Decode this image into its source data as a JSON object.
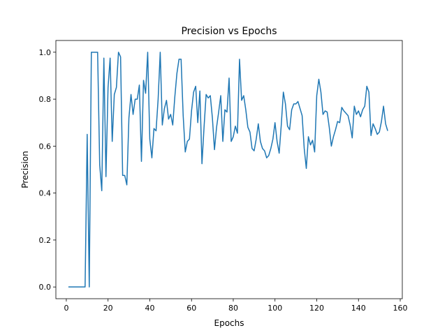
{
  "chart_data": {
    "type": "line",
    "title": "Precision vs Epochs",
    "xlabel": "Epochs",
    "ylabel": "Precision",
    "xlim": [
      -5,
      161
    ],
    "ylim": [
      -0.05,
      1.05
    ],
    "x_ticks": [
      0,
      20,
      40,
      60,
      80,
      100,
      120,
      140,
      160
    ],
    "y_ticks": [
      0.0,
      0.2,
      0.4,
      0.6,
      0.8,
      1.0
    ],
    "x_tick_labels": [
      "0",
      "20",
      "40",
      "60",
      "80",
      "100",
      "120",
      "140",
      "160"
    ],
    "y_tick_labels": [
      "0.0",
      "0.2",
      "0.4",
      "0.6",
      "0.8",
      "1.0"
    ],
    "grid": false,
    "line_color": "#1f77b4",
    "series": [
      {
        "x": [
          1,
          2,
          3,
          4,
          5,
          6,
          7,
          8,
          9,
          10,
          11,
          12,
          13,
          14,
          15,
          16,
          17,
          18,
          19,
          20,
          21,
          22,
          23,
          24,
          25,
          26,
          27,
          28,
          29,
          30,
          31,
          32,
          33,
          34,
          35,
          36,
          37,
          38,
          39,
          40,
          41,
          42,
          43,
          44,
          45,
          46,
          47,
          48,
          49,
          50,
          51,
          52,
          53,
          54,
          55,
          56,
          57,
          58,
          59,
          60,
          61,
          62,
          63,
          64,
          65,
          66,
          67,
          68,
          69,
          70,
          71,
          72,
          73,
          74,
          75,
          76,
          77,
          78,
          79,
          80,
          81,
          82,
          83,
          84,
          85,
          86,
          87,
          88,
          89,
          90,
          91,
          92,
          93,
          94,
          95,
          96,
          97,
          98,
          99,
          100,
          101,
          102,
          103,
          104,
          105,
          106,
          107,
          108,
          109,
          110,
          111,
          112,
          113,
          114,
          115,
          116,
          117,
          118,
          119,
          120,
          121,
          122,
          123,
          124,
          125,
          126,
          127,
          128,
          129,
          130,
          131,
          132,
          133,
          134,
          135,
          136,
          137,
          138,
          139,
          140,
          141,
          142,
          143,
          144,
          145,
          146,
          147,
          148,
          149,
          150,
          151,
          152,
          153,
          154
        ],
        "y": [
          0.0,
          0.0,
          0.0,
          0.0,
          0.0,
          0.0,
          0.0,
          0.0,
          0.0,
          0.65,
          0.0,
          1.0,
          1.0,
          1.0,
          1.0,
          0.52,
          0.41,
          0.975,
          0.47,
          0.85,
          0.975,
          0.62,
          0.82,
          0.85,
          1.0,
          0.98,
          0.475,
          0.475,
          0.435,
          0.72,
          0.82,
          0.735,
          0.8,
          0.8,
          0.86,
          0.535,
          0.88,
          0.825,
          1.0,
          0.63,
          0.55,
          0.675,
          0.665,
          0.8,
          1.0,
          0.69,
          0.76,
          0.795,
          0.715,
          0.735,
          0.69,
          0.81,
          0.91,
          0.97,
          0.97,
          0.73,
          0.575,
          0.62,
          0.63,
          0.75,
          0.83,
          0.855,
          0.7,
          0.835,
          0.525,
          0.68,
          0.82,
          0.805,
          0.815,
          0.72,
          0.585,
          0.68,
          0.745,
          0.815,
          0.62,
          0.755,
          0.745,
          0.89,
          0.62,
          0.64,
          0.685,
          0.655,
          0.97,
          0.795,
          0.815,
          0.755,
          0.68,
          0.66,
          0.59,
          0.58,
          0.63,
          0.695,
          0.62,
          0.59,
          0.58,
          0.55,
          0.56,
          0.59,
          0.63,
          0.7,
          0.62,
          0.57,
          0.69,
          0.83,
          0.78,
          0.685,
          0.67,
          0.755,
          0.78,
          0.78,
          0.79,
          0.76,
          0.73,
          0.59,
          0.505,
          0.64,
          0.605,
          0.625,
          0.575,
          0.815,
          0.885,
          0.83,
          0.735,
          0.75,
          0.745,
          0.68,
          0.6,
          0.64,
          0.67,
          0.705,
          0.7,
          0.765,
          0.75,
          0.74,
          0.73,
          0.69,
          0.635,
          0.77,
          0.735,
          0.75,
          0.725,
          0.755,
          0.77,
          0.855,
          0.83,
          0.645,
          0.695,
          0.675,
          0.65,
          0.66,
          0.705,
          0.77,
          0.695,
          0.665
        ]
      }
    ]
  }
}
